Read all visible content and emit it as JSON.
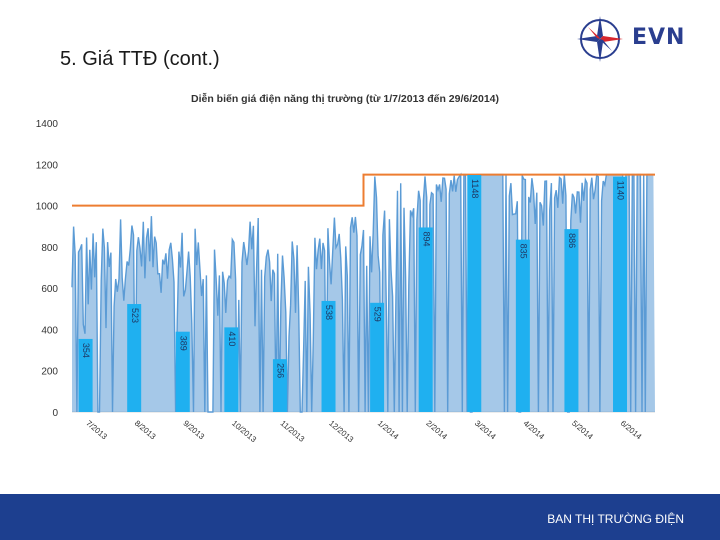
{
  "slide": {
    "title": "5. Giá TTĐ (cont.)",
    "footer": "BAN THỊ TRƯỜNG ĐIỆN"
  },
  "logo": {
    "text": "EVN",
    "icon": "evn-star-compass-icon"
  },
  "colors": {
    "price_series": "#5b9bd5",
    "price_cap": "#ed7d31",
    "label_box": "#1fb0f0",
    "footer": "#1d3f8f",
    "brand": "#2a3e8f"
  },
  "chart_data": {
    "type": "line",
    "title": "Diễn biến giá điện năng thị trường (từ 1/7/2013 đến 29/6/2014)",
    "xlabel": "",
    "ylabel": "",
    "ylim": [
      0,
      1400
    ],
    "yticks": [
      0,
      200,
      400,
      600,
      800,
      1000,
      1200,
      1400
    ],
    "grid": false,
    "legend": "none",
    "categories": [
      "7/2013",
      "8/2013",
      "9/2013",
      "10/2013",
      "11/2013",
      "12/2013",
      "1/2014",
      "2/2014",
      "3/2014",
      "4/2014",
      "5/2014",
      "6/2014"
    ],
    "series": [
      {
        "kind": "price_cap",
        "segments": [
          {
            "from": "7/2013",
            "to": "12/2013",
            "value": 1000
          },
          {
            "from": "1/2014",
            "to": "6/2014",
            "value": 1150
          }
        ]
      },
      {
        "kind": "market_price_daily_envelope",
        "monthly_min_labels": [
          354,
          523,
          389,
          410,
          256,
          538,
          529,
          894,
          1148,
          835,
          886,
          1140
        ],
        "monthly_typical_high": [
          900,
          950,
          900,
          950,
          900,
          950,
          1150,
          1150,
          1150,
          1150,
          1150,
          1150
        ]
      }
    ],
    "annotations": [
      {
        "month": "7/2013",
        "text": "354",
        "value": 354
      },
      {
        "month": "8/2013",
        "text": "523",
        "value": 523
      },
      {
        "month": "9/2013",
        "text": "389",
        "value": 389
      },
      {
        "month": "10/2013",
        "text": "410",
        "value": 410
      },
      {
        "month": "11/2013",
        "text": "256",
        "value": 256
      },
      {
        "month": "12/2013",
        "text": "538",
        "value": 538
      },
      {
        "month": "1/2014",
        "text": "529",
        "value": 529
      },
      {
        "month": "2/2014",
        "text": "894",
        "value": 894
      },
      {
        "month": "3/2014",
        "text": "1148",
        "value": 1148
      },
      {
        "month": "4/2014",
        "text": "835",
        "value": 835
      },
      {
        "month": "5/2014",
        "text": "886",
        "value": 886
      },
      {
        "month": "6/2014",
        "text": "1140",
        "value": 1140
      }
    ]
  }
}
